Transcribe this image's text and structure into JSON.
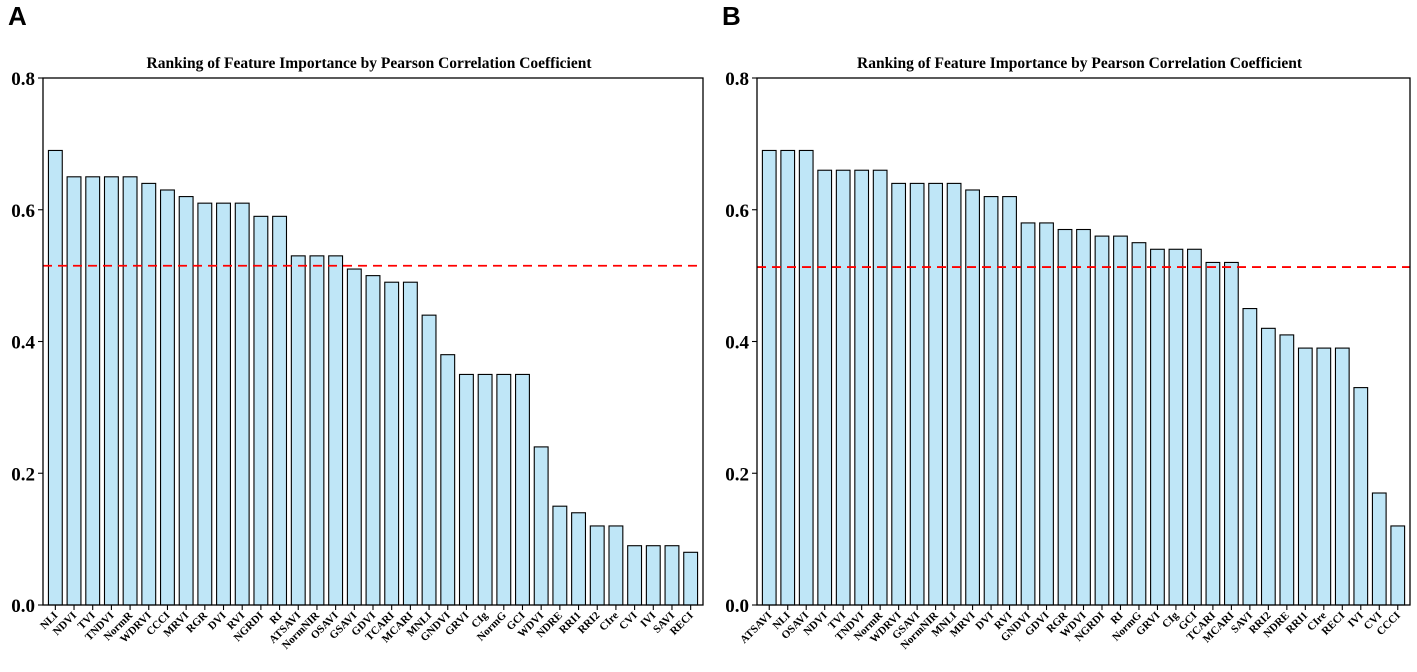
{
  "panel_labels": [
    "A",
    "B"
  ],
  "chart_data": [
    {
      "type": "bar",
      "panel": "A",
      "title": "Ranking of Feature Importance by Pearson Correlation Coefficient",
      "xlabel": "",
      "ylabel": "",
      "ylim": [
        0,
        0.8
      ],
      "yticks": [
        "0.0",
        "0.2",
        "0.4",
        "0.6",
        "0.8"
      ],
      "threshold": 0.515,
      "categories": [
        "NLI",
        "NDVI",
        "TVI",
        "TNDVI",
        "NormR",
        "WDRVI",
        "CCCI",
        "MRVI",
        "RGR",
        "DVI",
        "RVI",
        "NGRDI",
        "RI",
        "ATSAVI",
        "NormNIR",
        "OSAVI",
        "GSAVI",
        "GDVI",
        "TCARI",
        "MCARI",
        "MNLI",
        "GNDVI",
        "GRVI",
        "CIg",
        "NormG",
        "GCI",
        "WDVI",
        "NDRE",
        "RRI1",
        "RRI2",
        "CIre",
        "CVI",
        "IVI",
        "SAVI",
        "RECI"
      ],
      "values": [
        0.69,
        0.65,
        0.65,
        0.65,
        0.65,
        0.64,
        0.63,
        0.62,
        0.61,
        0.61,
        0.61,
        0.59,
        0.59,
        0.53,
        0.53,
        0.53,
        0.51,
        0.5,
        0.49,
        0.49,
        0.44,
        0.38,
        0.35,
        0.35,
        0.35,
        0.35,
        0.24,
        0.15,
        0.14,
        0.12,
        0.12,
        0.09,
        0.09,
        0.09,
        0.08
      ]
    },
    {
      "type": "bar",
      "panel": "B",
      "title": "Ranking of Feature Importance by Pearson Correlation Coefficient",
      "xlabel": "",
      "ylabel": "",
      "ylim": [
        0,
        0.8
      ],
      "yticks": [
        "0.0",
        "0.2",
        "0.4",
        "0.6",
        "0.8"
      ],
      "threshold": 0.513,
      "categories": [
        "ATSAVI",
        "NLI",
        "OSAVI",
        "NDVI",
        "TVI",
        "TNDVI",
        "NormR",
        "WDRVI",
        "GSAVI",
        "NormNIR",
        "MNLI",
        "MRVI",
        "DVI",
        "RVI",
        "GNDVI",
        "GDVI",
        "RGR",
        "WDVI",
        "NGRDI",
        "RI",
        "NormG",
        "GRVI",
        "CIg",
        "GCI",
        "TCARI",
        "MCARI",
        "SAVI",
        "RRI2",
        "NDRE",
        "RRI1",
        "CIre",
        "RECI",
        "IVI",
        "CVI",
        "CCCI"
      ],
      "values": [
        0.69,
        0.69,
        0.69,
        0.66,
        0.66,
        0.66,
        0.66,
        0.64,
        0.64,
        0.64,
        0.64,
        0.63,
        0.62,
        0.62,
        0.58,
        0.58,
        0.57,
        0.57,
        0.56,
        0.56,
        0.55,
        0.54,
        0.54,
        0.54,
        0.52,
        0.52,
        0.45,
        0.42,
        0.41,
        0.39,
        0.39,
        0.39,
        0.33,
        0.17,
        0.12
      ]
    }
  ]
}
